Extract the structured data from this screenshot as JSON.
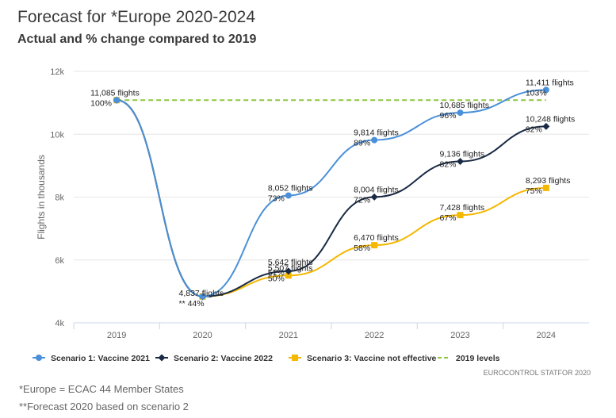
{
  "header": {
    "title": "Forecast for *Europe 2020-2024",
    "subtitle": "Actual and % change compared to 2019"
  },
  "credit": "EUROCONTROL STATFOR 2020",
  "footnotes": [
    "*Europe = ECAC 44 Member States",
    "**Forecast 2020 based on scenario 2"
  ],
  "chart_data": {
    "type": "line",
    "title": "Forecast for *Europe 2020-2024",
    "subtitle": "Actual and % change compared to 2019",
    "ylabel": "Flights in thousands",
    "xlabel": "",
    "categories": [
      "2019",
      "2020",
      "2021",
      "2022",
      "2023",
      "2024"
    ],
    "ylim": [
      4000,
      12000
    ],
    "yticks": [
      4000,
      6000,
      8000,
      10000,
      12000
    ],
    "ytick_labels": [
      "4k",
      "6k",
      "8k",
      "10k",
      "12k"
    ],
    "grid": "horizontal",
    "legend_position": "bottom",
    "series": [
      {
        "name": "Scenario 1: Vaccine 2021",
        "color": "#4a90d9",
        "marker": "circle",
        "values": [
          11085,
          4837,
          8052,
          9814,
          10685,
          11411
        ],
        "labels": [
          "11,085 flights",
          "4,837 flights",
          "8,052 flights",
          "9,814 flights",
          "10,685 flights",
          "11,411 flights"
        ],
        "pct": [
          "100%",
          "** 44%",
          "73%",
          "89%",
          "96%",
          "103%"
        ]
      },
      {
        "name": "Scenario 2: Vaccine 2022",
        "color": "#1a2a44",
        "marker": "diamond",
        "values": [
          11085,
          4837,
          5642,
          8004,
          9136,
          10248
        ],
        "labels": [
          "",
          "",
          "5,642 flights",
          "8,004 flights",
          "9,136 flights",
          "10,248 flights"
        ],
        "pct": [
          "",
          "",
          "51%",
          "72%",
          "82%",
          "92%"
        ]
      },
      {
        "name": "Scenario 3: Vaccine not effective",
        "color": "#f5b800",
        "marker": "square",
        "values": [
          11085,
          4837,
          5507,
          6470,
          7428,
          8293
        ],
        "labels": [
          "",
          "",
          "5,507 flights",
          "6,470 flights",
          "7,428 flights",
          "8,293 flights"
        ],
        "pct": [
          "",
          "",
          "50%",
          "58%",
          "67%",
          "75%"
        ]
      },
      {
        "name": "2019 levels",
        "color": "#8cc63f",
        "dashed": true,
        "values": [
          11085,
          11085,
          11085,
          11085,
          11085,
          11085
        ]
      }
    ]
  }
}
